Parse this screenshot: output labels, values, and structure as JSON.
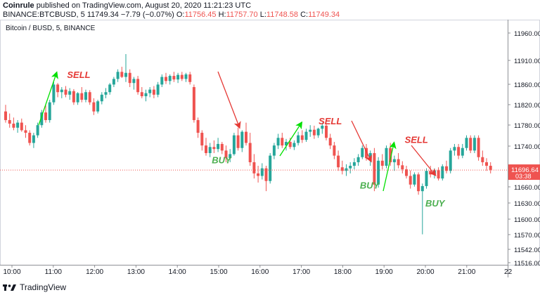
{
  "header": {
    "publisher": "Coinrule",
    "published_text": "published on TradingView.com, August 20, 2020 11:21:23 UTC",
    "symbol": "BINANCE:BTCBUSD, 5",
    "change_text": "11749.34  −7.79 (−0.07%)",
    "o_label": "O:",
    "o_value": "11756.45",
    "h_label": "H:",
    "h_value": "11757.70",
    "l_label": "L:",
    "l_value": "11748.58",
    "c_label": "C:",
    "c_value": "11749.34"
  },
  "colors": {
    "up": "#26a69a",
    "down": "#ef5350",
    "buy": "#4caf50",
    "sell": "#e53935",
    "up_arrow": "#00e000",
    "down_arrow": "#e53935"
  },
  "chart_data": {
    "type": "candlestick",
    "title": "Bitcoin / BUSD, 5, BINANCE",
    "x_ticks": [
      "10:00",
      "11:00",
      "12:00",
      "13:00",
      "14:00",
      "15:00",
      "16:00",
      "17:00",
      "18:00",
      "19:00",
      "20:00",
      "21:00",
      "22"
    ],
    "y_ticks": [
      11960.0,
      11910.0,
      11860.0,
      11820.0,
      11780.0,
      11740.0,
      11700.0,
      11660.0,
      11630.0,
      11600.0,
      11570.0,
      11542.0,
      11516.0
    ],
    "ylim": [
      11510,
      11990
    ],
    "last_price": "11696.64",
    "countdown": "03:38",
    "annotations": [
      {
        "label": "SELL",
        "time": "11:20",
        "price": 11878
      },
      {
        "label": "BUY",
        "time": "14:50",
        "price": 11710
      },
      {
        "label": "SELL",
        "time": "17:25",
        "price": 11787
      },
      {
        "label": "BUY",
        "time": "18:25",
        "price": 11660
      },
      {
        "label": "SELL",
        "time": "19:30",
        "price": 11750
      },
      {
        "label": "BUY",
        "time": "20:00",
        "price": 11625
      }
    ],
    "candles": [
      {
        "o": 11812,
        "h": 11825,
        "l": 11790,
        "c": 11795
      },
      {
        "o": 11795,
        "h": 11808,
        "l": 11780,
        "c": 11788
      },
      {
        "o": 11788,
        "h": 11800,
        "l": 11775,
        "c": 11780
      },
      {
        "o": 11780,
        "h": 11795,
        "l": 11770,
        "c": 11790
      },
      {
        "o": 11790,
        "h": 11798,
        "l": 11772,
        "c": 11775
      },
      {
        "o": 11775,
        "h": 11785,
        "l": 11760,
        "c": 11770
      },
      {
        "o": 11770,
        "h": 11775,
        "l": 11745,
        "c": 11750
      },
      {
        "o": 11750,
        "h": 11770,
        "l": 11740,
        "c": 11765
      },
      {
        "o": 11765,
        "h": 11790,
        "l": 11760,
        "c": 11785
      },
      {
        "o": 11785,
        "h": 11815,
        "l": 11780,
        "c": 11810
      },
      {
        "o": 11810,
        "h": 11825,
        "l": 11790,
        "c": 11795
      },
      {
        "o": 11795,
        "h": 11835,
        "l": 11790,
        "c": 11830
      },
      {
        "o": 11830,
        "h": 11870,
        "l": 11825,
        "c": 11865
      },
      {
        "o": 11865,
        "h": 11868,
        "l": 11840,
        "c": 11850
      },
      {
        "o": 11850,
        "h": 11860,
        "l": 11838,
        "c": 11855
      },
      {
        "o": 11855,
        "h": 11862,
        "l": 11840,
        "c": 11845
      },
      {
        "o": 11845,
        "h": 11858,
        "l": 11835,
        "c": 11852
      },
      {
        "o": 11852,
        "h": 11856,
        "l": 11825,
        "c": 11830
      },
      {
        "o": 11830,
        "h": 11850,
        "l": 11825,
        "c": 11848
      },
      {
        "o": 11848,
        "h": 11860,
        "l": 11830,
        "c": 11835
      },
      {
        "o": 11835,
        "h": 11855,
        "l": 11830,
        "c": 11850
      },
      {
        "o": 11850,
        "h": 11854,
        "l": 11825,
        "c": 11830
      },
      {
        "o": 11830,
        "h": 11838,
        "l": 11805,
        "c": 11812
      },
      {
        "o": 11812,
        "h": 11835,
        "l": 11808,
        "c": 11832
      },
      {
        "o": 11832,
        "h": 11850,
        "l": 11826,
        "c": 11845
      },
      {
        "o": 11845,
        "h": 11858,
        "l": 11838,
        "c": 11850
      },
      {
        "o": 11850,
        "h": 11868,
        "l": 11845,
        "c": 11865
      },
      {
        "o": 11865,
        "h": 11880,
        "l": 11860,
        "c": 11876
      },
      {
        "o": 11876,
        "h": 11895,
        "l": 11870,
        "c": 11890
      },
      {
        "o": 11890,
        "h": 11900,
        "l": 11878,
        "c": 11880
      },
      {
        "o": 11880,
        "h": 11925,
        "l": 11870,
        "c": 11888
      },
      {
        "o": 11888,
        "h": 11895,
        "l": 11860,
        "c": 11868
      },
      {
        "o": 11868,
        "h": 11880,
        "l": 11855,
        "c": 11876
      },
      {
        "o": 11876,
        "h": 11882,
        "l": 11845,
        "c": 11850
      },
      {
        "o": 11850,
        "h": 11860,
        "l": 11838,
        "c": 11842
      },
      {
        "o": 11842,
        "h": 11855,
        "l": 11832,
        "c": 11848
      },
      {
        "o": 11848,
        "h": 11860,
        "l": 11840,
        "c": 11855
      },
      {
        "o": 11855,
        "h": 11862,
        "l": 11838,
        "c": 11845
      },
      {
        "o": 11845,
        "h": 11870,
        "l": 11840,
        "c": 11865
      },
      {
        "o": 11865,
        "h": 11885,
        "l": 11860,
        "c": 11880
      },
      {
        "o": 11880,
        "h": 11888,
        "l": 11866,
        "c": 11872
      },
      {
        "o": 11872,
        "h": 11885,
        "l": 11865,
        "c": 11882
      },
      {
        "o": 11882,
        "h": 11890,
        "l": 11870,
        "c": 11875
      },
      {
        "o": 11875,
        "h": 11888,
        "l": 11868,
        "c": 11884
      },
      {
        "o": 11884,
        "h": 11890,
        "l": 11872,
        "c": 11876
      },
      {
        "o": 11876,
        "h": 11888,
        "l": 11870,
        "c": 11885
      },
      {
        "o": 11885,
        "h": 11890,
        "l": 11865,
        "c": 11870
      },
      {
        "o": 11860,
        "h": 11865,
        "l": 11790,
        "c": 11795
      },
      {
        "o": 11795,
        "h": 11800,
        "l": 11760,
        "c": 11770
      },
      {
        "o": 11770,
        "h": 11775,
        "l": 11735,
        "c": 11745
      },
      {
        "o": 11745,
        "h": 11760,
        "l": 11725,
        "c": 11730
      },
      {
        "o": 11730,
        "h": 11750,
        "l": 11722,
        "c": 11742
      },
      {
        "o": 11742,
        "h": 11755,
        "l": 11730,
        "c": 11738
      },
      {
        "o": 11738,
        "h": 11760,
        "l": 11732,
        "c": 11748
      },
      {
        "o": 11748,
        "h": 11752,
        "l": 11728,
        "c": 11735
      },
      {
        "o": 11735,
        "h": 11745,
        "l": 11712,
        "c": 11720
      },
      {
        "o": 11720,
        "h": 11738,
        "l": 11712,
        "c": 11728
      },
      {
        "o": 11728,
        "h": 11770,
        "l": 11725,
        "c": 11765
      },
      {
        "o": 11765,
        "h": 11780,
        "l": 11735,
        "c": 11740
      },
      {
        "o": 11740,
        "h": 11775,
        "l": 11732,
        "c": 11772
      },
      {
        "o": 11772,
        "h": 11790,
        "l": 11745,
        "c": 11750
      },
      {
        "o": 11750,
        "h": 11770,
        "l": 11705,
        "c": 11712
      },
      {
        "o": 11712,
        "h": 11728,
        "l": 11680,
        "c": 11690
      },
      {
        "o": 11690,
        "h": 11705,
        "l": 11672,
        "c": 11685
      },
      {
        "o": 11685,
        "h": 11710,
        "l": 11678,
        "c": 11700
      },
      {
        "o": 11700,
        "h": 11705,
        "l": 11655,
        "c": 11675
      },
      {
        "o": 11675,
        "h": 11730,
        "l": 11670,
        "c": 11725
      },
      {
        "o": 11725,
        "h": 11750,
        "l": 11718,
        "c": 11745
      },
      {
        "o": 11745,
        "h": 11768,
        "l": 11738,
        "c": 11760
      },
      {
        "o": 11760,
        "h": 11770,
        "l": 11740,
        "c": 11745
      },
      {
        "o": 11745,
        "h": 11758,
        "l": 11735,
        "c": 11752
      },
      {
        "o": 11752,
        "h": 11760,
        "l": 11738,
        "c": 11742
      },
      {
        "o": 11742,
        "h": 11755,
        "l": 11736,
        "c": 11750
      },
      {
        "o": 11750,
        "h": 11772,
        "l": 11745,
        "c": 11765
      },
      {
        "o": 11765,
        "h": 11775,
        "l": 11750,
        "c": 11756
      },
      {
        "o": 11756,
        "h": 11778,
        "l": 11752,
        "c": 11772
      },
      {
        "o": 11772,
        "h": 11785,
        "l": 11762,
        "c": 11776
      },
      {
        "o": 11776,
        "h": 11784,
        "l": 11758,
        "c": 11765
      },
      {
        "o": 11765,
        "h": 11780,
        "l": 11760,
        "c": 11778
      },
      {
        "o": 11778,
        "h": 11790,
        "l": 11768,
        "c": 11784
      },
      {
        "o": 11784,
        "h": 11787,
        "l": 11755,
        "c": 11760
      },
      {
        "o": 11760,
        "h": 11768,
        "l": 11738,
        "c": 11745
      },
      {
        "o": 11745,
        "h": 11752,
        "l": 11718,
        "c": 11725
      },
      {
        "o": 11725,
        "h": 11735,
        "l": 11695,
        "c": 11702
      },
      {
        "o": 11702,
        "h": 11715,
        "l": 11688,
        "c": 11695
      },
      {
        "o": 11695,
        "h": 11708,
        "l": 11685,
        "c": 11700
      },
      {
        "o": 11700,
        "h": 11712,
        "l": 11690,
        "c": 11705
      },
      {
        "o": 11705,
        "h": 11720,
        "l": 11698,
        "c": 11712
      },
      {
        "o": 11712,
        "h": 11728,
        "l": 11705,
        "c": 11722
      },
      {
        "o": 11722,
        "h": 11745,
        "l": 11718,
        "c": 11740
      },
      {
        "o": 11740,
        "h": 11748,
        "l": 11715,
        "c": 11720
      },
      {
        "o": 11720,
        "h": 11735,
        "l": 11705,
        "c": 11730
      },
      {
        "o": 11730,
        "h": 11740,
        "l": 11655,
        "c": 11668
      },
      {
        "o": 11668,
        "h": 11722,
        "l": 11662,
        "c": 11715
      },
      {
        "o": 11715,
        "h": 11728,
        "l": 11698,
        "c": 11705
      },
      {
        "o": 11705,
        "h": 11745,
        "l": 11700,
        "c": 11740
      },
      {
        "o": 11740,
        "h": 11750,
        "l": 11705,
        "c": 11712
      },
      {
        "o": 11712,
        "h": 11725,
        "l": 11695,
        "c": 11718
      },
      {
        "o": 11718,
        "h": 11730,
        "l": 11700,
        "c": 11706
      },
      {
        "o": 11706,
        "h": 11714,
        "l": 11690,
        "c": 11698
      },
      {
        "o": 11698,
        "h": 11705,
        "l": 11680,
        "c": 11685
      },
      {
        "o": 11685,
        "h": 11696,
        "l": 11660,
        "c": 11668
      },
      {
        "o": 11668,
        "h": 11692,
        "l": 11664,
        "c": 11688
      },
      {
        "o": 11688,
        "h": 11692,
        "l": 11648,
        "c": 11655
      },
      {
        "o": 11655,
        "h": 11670,
        "l": 11570,
        "c": 11665
      },
      {
        "o": 11665,
        "h": 11700,
        "l": 11660,
        "c": 11695
      },
      {
        "o": 11695,
        "h": 11705,
        "l": 11682,
        "c": 11688
      },
      {
        "o": 11688,
        "h": 11700,
        "l": 11680,
        "c": 11696
      },
      {
        "o": 11696,
        "h": 11702,
        "l": 11676,
        "c": 11680
      },
      {
        "o": 11680,
        "h": 11708,
        "l": 11676,
        "c": 11704
      },
      {
        "o": 11704,
        "h": 11715,
        "l": 11690,
        "c": 11695
      },
      {
        "o": 11695,
        "h": 11740,
        "l": 11690,
        "c": 11735
      },
      {
        "o": 11735,
        "h": 11748,
        "l": 11725,
        "c": 11742
      },
      {
        "o": 11742,
        "h": 11748,
        "l": 11718,
        "c": 11725
      },
      {
        "o": 11725,
        "h": 11748,
        "l": 11720,
        "c": 11740
      },
      {
        "o": 11740,
        "h": 11765,
        "l": 11735,
        "c": 11760
      },
      {
        "o": 11760,
        "h": 11765,
        "l": 11730,
        "c": 11735
      },
      {
        "o": 11735,
        "h": 11765,
        "l": 11730,
        "c": 11760
      },
      {
        "o": 11760,
        "h": 11765,
        "l": 11715,
        "c": 11722
      },
      {
        "o": 11722,
        "h": 11735,
        "l": 11705,
        "c": 11712
      },
      {
        "o": 11712,
        "h": 11720,
        "l": 11695,
        "c": 11705
      },
      {
        "o": 11705,
        "h": 11712,
        "l": 11690,
        "c": 11697
      }
    ]
  },
  "footer": {
    "brand": "TradingView"
  }
}
